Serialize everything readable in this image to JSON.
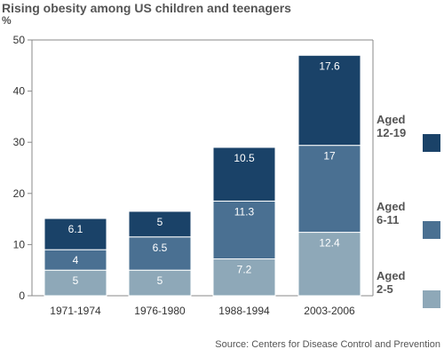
{
  "title": "Rising obesity among US children and teenagers",
  "unit_label": "%",
  "source": "Source: Centers for Disease Control and Prevention",
  "colors": {
    "aged_2_5": "#8ea8b8",
    "aged_6_11": "#4a7092",
    "aged_12_19": "#1a4268",
    "axis": "#888888",
    "grid": "#dddddd",
    "text": "#333333"
  },
  "chart_data": {
    "type": "bar",
    "stacked": true,
    "title": "Rising obesity among US children and teenagers",
    "xlabel": "",
    "ylabel": "%",
    "ylim": [
      0,
      50
    ],
    "yticks": [
      0,
      10,
      20,
      30,
      40,
      50
    ],
    "grid": false,
    "legend_position": "right",
    "categories": [
      "1971-1974",
      "1976-1980",
      "1988-1994",
      "2003-2006"
    ],
    "series": [
      {
        "name": "Aged 2-5",
        "legend_lines": [
          "Aged",
          "2-5"
        ],
        "color": "#8ea8b8",
        "values": [
          5,
          5,
          7.2,
          12.4
        ]
      },
      {
        "name": "Aged 6-11",
        "legend_lines": [
          "Aged",
          "6-11"
        ],
        "color": "#4a7092",
        "values": [
          4,
          6.5,
          11.3,
          17
        ]
      },
      {
        "name": "Aged 12-19",
        "legend_lines": [
          "Aged",
          "12-19"
        ],
        "color": "#1a4268",
        "values": [
          6.1,
          5,
          10.5,
          17.6
        ]
      }
    ]
  }
}
